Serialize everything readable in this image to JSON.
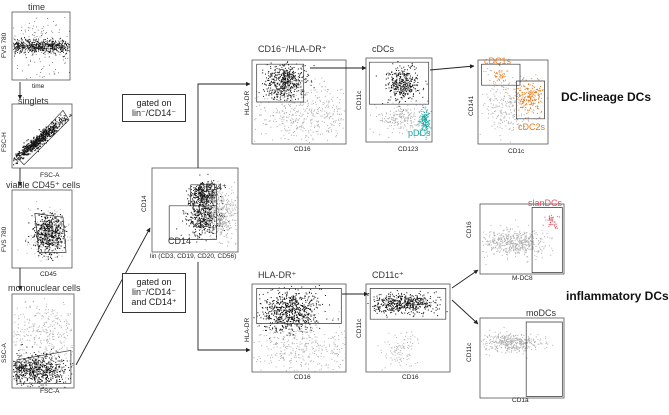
{
  "gates": {
    "time": "time",
    "singlets": "singlets",
    "viable": "viable CD45⁺ cells",
    "mononuclear": "mononuclear cells",
    "cd16_hladr": "CD16⁻/HLA-DR⁺",
    "cdcs": "cDCs",
    "hladr": "HLA-DR⁺",
    "cd11c": "CD11c⁺"
  },
  "populations": {
    "cd14pos": "CD14⁺",
    "cd14neg": "CD14⁻",
    "pdcs": "pDCs",
    "cdc1s": "cDC1s",
    "cdc2s": "cDC2s",
    "slandcs": "slanDCs",
    "modcs": "moDCs"
  },
  "boxes": {
    "gate1_line1": "gated on",
    "gate1_line2": "lin⁻/CD14⁻",
    "gate2_line1": "gated on",
    "gate2_line2": "lin⁻/CD14⁻",
    "gate2_line3": "and CD14⁺"
  },
  "titles": {
    "dc_lineage": "DC-lineage DCs",
    "inflammatory": "inflammatory DCs"
  },
  "axes": {
    "p1x": "time",
    "p1y": "FVS 780",
    "p2x": "FSC-A",
    "p2y": "FSC-H",
    "p3x": "CD45",
    "p3y": "FVS 780",
    "p4x": "FSC-A",
    "p4y": "SSC-A",
    "p5x": "lin (CD3, CD19, CD20, CD56)",
    "p5y": "CD14",
    "p6x": "CD16",
    "p6y": "HLA-DR",
    "p7x": "CD123",
    "p7y": "CD11c",
    "p8x": "CD1c",
    "p8y": "CD141",
    "p9x": "CD16",
    "p9y": "HLA-DR",
    "p10x": "CD16",
    "p10y": "CD11c",
    "p11x": "M-DC8",
    "p11y": "CD16",
    "p12x": "CD1a",
    "p12y": "CD11c"
  },
  "colors": {
    "dark": "#111111",
    "grey": "#b0b0b0",
    "teal": "#1aa6a0",
    "orange": "#e8791a",
    "red": "#e05060"
  }
}
